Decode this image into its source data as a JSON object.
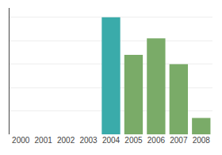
{
  "chart_data": {
    "type": "bar",
    "categories": [
      "2000",
      "2001",
      "2002",
      "2003",
      "2004",
      "2005",
      "2006",
      "2007",
      "2008"
    ],
    "values": [
      0,
      0,
      0,
      0,
      100,
      68,
      82,
      60,
      14
    ],
    "colors": [
      "#7aab68",
      "#7aab68",
      "#7aab68",
      "#7aab68",
      "#3aabaa",
      "#7aab68",
      "#7aab68",
      "#7aab68",
      "#7aab68"
    ],
    "ylim": [
      0,
      108
    ],
    "yticks": [
      20,
      40,
      60,
      80,
      100
    ],
    "grid": true,
    "tick_labels": "x"
  }
}
